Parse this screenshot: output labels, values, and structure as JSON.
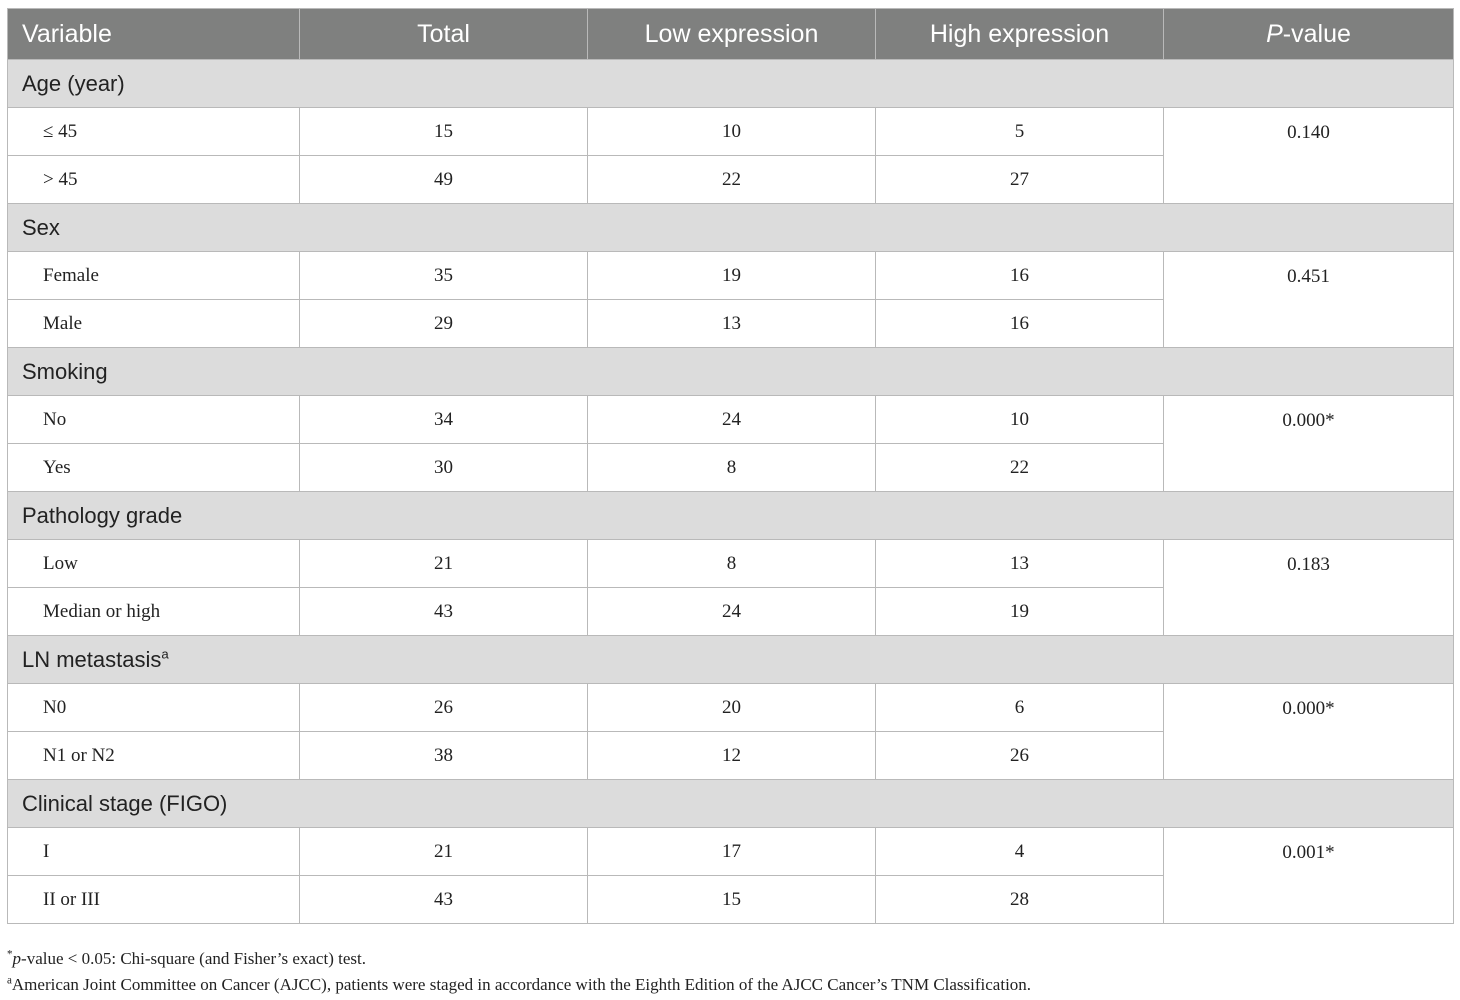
{
  "table": {
    "headers": {
      "variable": "Variable",
      "total": "Total",
      "low": "Low expression",
      "high": "High expression",
      "p_prefix": "P",
      "p_suffix": "-value"
    },
    "groups": [
      {
        "label": "Age (year)",
        "label_sup": "",
        "p_value": "0.140",
        "rows": [
          {
            "label": "≤ 45",
            "total": "15",
            "low": "10",
            "high": "5"
          },
          {
            "label": "> 45",
            "total": "49",
            "low": "22",
            "high": "27"
          }
        ]
      },
      {
        "label": "Sex",
        "label_sup": "",
        "p_value": "0.451",
        "rows": [
          {
            "label": "Female",
            "total": "35",
            "low": "19",
            "high": "16"
          },
          {
            "label": "Male",
            "total": "29",
            "low": "13",
            "high": "16"
          }
        ]
      },
      {
        "label": "Smoking",
        "label_sup": "",
        "p_value": "0.000*",
        "rows": [
          {
            "label": "No",
            "total": "34",
            "low": "24",
            "high": "10"
          },
          {
            "label": "Yes",
            "total": "30",
            "low": "8",
            "high": "22"
          }
        ]
      },
      {
        "label": "Pathology grade",
        "label_sup": "",
        "p_value": "0.183",
        "rows": [
          {
            "label": "Low",
            "total": "21",
            "low": "8",
            "high": "13"
          },
          {
            "label": "Median or high",
            "total": "43",
            "low": "24",
            "high": "19"
          }
        ]
      },
      {
        "label": "LN metastasis",
        "label_sup": "a",
        "p_value": "0.000*",
        "rows": [
          {
            "label": "N0",
            "total": "26",
            "low": "20",
            "high": "6"
          },
          {
            "label": "N1 or N2",
            "total": "38",
            "low": "12",
            "high": "26"
          }
        ]
      },
      {
        "label": "Clinical stage (FIGO)",
        "label_sup": "",
        "p_value": "0.001*",
        "rows": [
          {
            "label": "I",
            "total": "21",
            "low": "17",
            "high": "4"
          },
          {
            "label": "II or III",
            "total": "43",
            "low": "15",
            "high": "28"
          }
        ]
      }
    ]
  },
  "footnotes": [
    {
      "marker": "*",
      "italic": "p",
      "text": "-value < 0.05: Chi-square (and Fisher’s exact) test."
    },
    {
      "marker": "a",
      "italic": "",
      "text": "American Joint Committee on Cancer (AJCC), patients were staged in accordance with the Eighth Edition of the AJCC Cancer’s TNM Classification."
    }
  ]
}
